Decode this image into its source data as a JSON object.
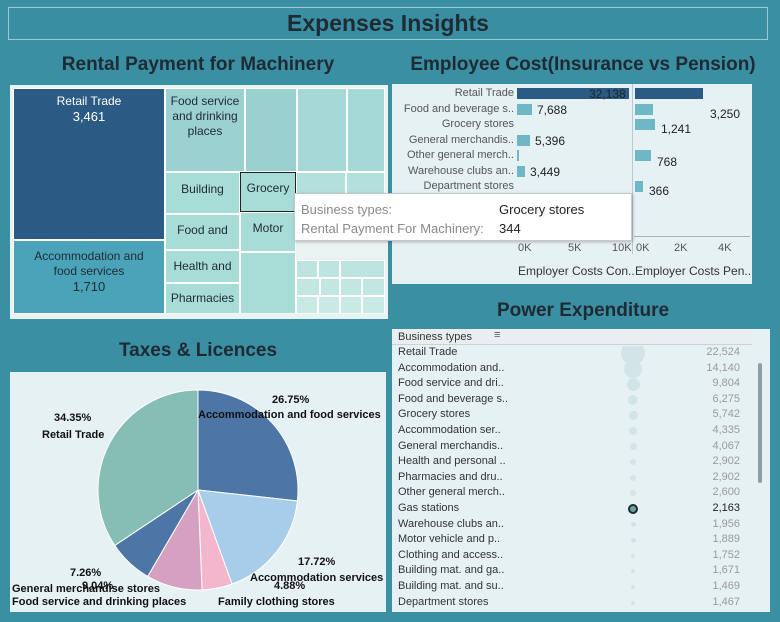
{
  "dashboard_title": "Expenses Insights",
  "rental": {
    "title": "Rental Payment for Machinery",
    "cells": [
      {
        "label": "Retail Trade",
        "value": "3,461"
      },
      {
        "label": "Accommodation and food services",
        "value": "1,710"
      },
      {
        "label": "Food service and drinking places",
        "value": ""
      },
      {
        "label": "Building",
        "value": ""
      },
      {
        "label": "Grocery",
        "value": ""
      },
      {
        "label": "Food and",
        "value": ""
      },
      {
        "label": "Motor",
        "value": ""
      },
      {
        "label": "Health and",
        "value": ""
      },
      {
        "label": "Pharmacies",
        "value": ""
      }
    ],
    "tooltip": {
      "key1": "Business types:",
      "val1": "Grocery stores",
      "key2": "Rental Payment For Machinery:",
      "val2": "344"
    }
  },
  "employee": {
    "title": "Employee Cost(Insurance vs Pension)",
    "categories": [
      "Retail Trade",
      "Food and beverage s..",
      "Grocery stores",
      "General merchandis..",
      "Other general merch..",
      "Warehouse clubs an..",
      "Department stores"
    ],
    "insurance_labels": [
      "32,138",
      "7,688",
      "",
      "5,396",
      "",
      "3,449",
      ""
    ],
    "pension_labels": [
      "",
      "3,250",
      "1,241",
      "",
      "768",
      "",
      "366"
    ],
    "insurance_axis": [
      "0K",
      "5K",
      "10K"
    ],
    "pension_axis": [
      "0K",
      "2K",
      "4K"
    ],
    "insurance_title": "Employer Costs Con..",
    "pension_title": "Employer Costs Pen.."
  },
  "taxes": {
    "title": "Taxes & Licences",
    "labels": [
      {
        "pct": "26.75%",
        "name": "Accommodation and food services"
      },
      {
        "pct": "17.72%",
        "name": "Accommodation services"
      },
      {
        "pct": "4.88%",
        "name": "Family clothing stores"
      },
      {
        "pct": "9.04%",
        "name": "Food service and drinking places"
      },
      {
        "pct": "7.26%",
        "name": "General merchandise stores"
      },
      {
        "pct": "34.35%",
        "name": "Retail Trade"
      }
    ]
  },
  "power": {
    "title": "Power Expenditure",
    "header": "Business types",
    "rows": [
      {
        "name": "Retail Trade",
        "value": "22,524"
      },
      {
        "name": "Accommodation and..",
        "value": "14,140"
      },
      {
        "name": "Food service and dri..",
        "value": "9,804"
      },
      {
        "name": "Food and beverage s..",
        "value": "6,275"
      },
      {
        "name": "Grocery stores",
        "value": "5,742"
      },
      {
        "name": "Accommodation ser..",
        "value": "4,335"
      },
      {
        "name": "General merchandis..",
        "value": "4,067"
      },
      {
        "name": "Health and personal ..",
        "value": "2,902"
      },
      {
        "name": "Pharmacies and dru..",
        "value": "2,902"
      },
      {
        "name": "Other general merch..",
        "value": "2,600"
      },
      {
        "name": "Gas stations",
        "value": "2,163"
      },
      {
        "name": "Warehouse clubs an..",
        "value": "1,956"
      },
      {
        "name": "Motor vehicle and p..",
        "value": "1,889"
      },
      {
        "name": "Clothing and access..",
        "value": "1,752"
      },
      {
        "name": "Building mat. and ga..",
        "value": "1,671"
      },
      {
        "name": "Building mat. and su..",
        "value": "1,469"
      },
      {
        "name": "Department stores",
        "value": "1,467"
      }
    ]
  },
  "colors": {
    "dashboard_bg": "#3b8fa3",
    "retail_dark": "#2b5a85",
    "accommodation": "#4ba3ba",
    "light_teal": "#a8dcd6",
    "pie_teal": "#86bdb5",
    "pie_blue": "#4d76a7",
    "pie_light": "#a8cdea",
    "pie_pink": "#f3b6cc",
    "pie_mauve": "#d6a1c0"
  }
}
